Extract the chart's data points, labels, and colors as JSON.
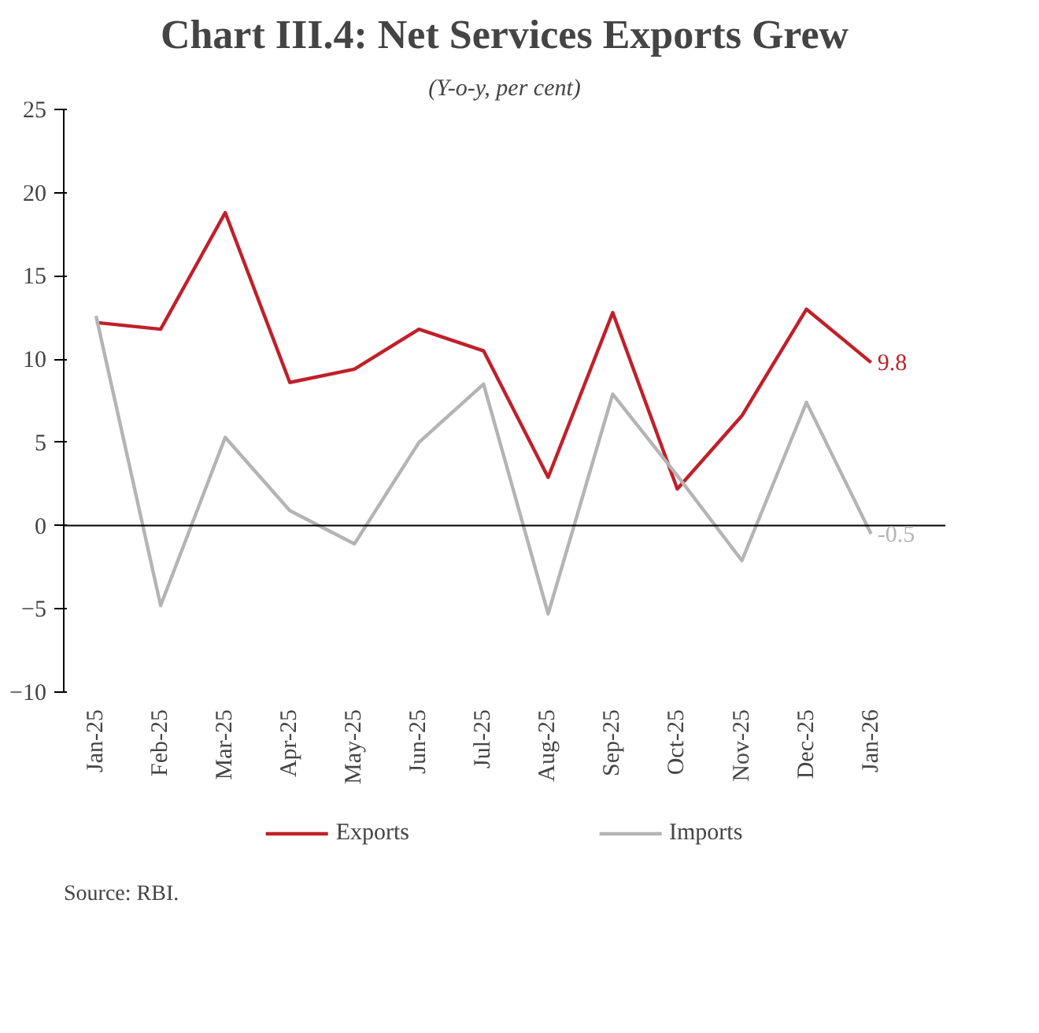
{
  "chart_data": {
    "type": "line",
    "title": "Chart III.4: Net Services Exports Grew",
    "subtitle": "(Y-o-y, per cent)",
    "categories": [
      "Jan-25",
      "Feb-25",
      "Mar-25",
      "Apr-25",
      "May-25",
      "Jun-25",
      "Jul-25",
      "Aug-25",
      "Sep-25",
      "Oct-25",
      "Nov-25",
      "Dec-25",
      "Jan-26"
    ],
    "series": [
      {
        "name": "Exports",
        "color": "#c0202a",
        "values": [
          12.2,
          11.8,
          18.8,
          8.6,
          9.4,
          11.8,
          10.5,
          2.9,
          12.8,
          2.2,
          6.6,
          13.0,
          9.8
        ],
        "value_labels": [
          null,
          null,
          null,
          null,
          null,
          null,
          null,
          null,
          null,
          null,
          null,
          null,
          "9.8"
        ]
      },
      {
        "name": "Imports",
        "color": "#b4b4b4",
        "values": [
          12.6,
          -4.8,
          5.3,
          0.9,
          -1.1,
          5.0,
          8.5,
          -5.3,
          7.9,
          3.0,
          -2.1,
          7.4,
          -0.5
        ],
        "value_labels": [
          null,
          null,
          null,
          null,
          null,
          null,
          null,
          null,
          null,
          null,
          null,
          null,
          "-0.5"
        ]
      }
    ],
    "ylim": [
      -10,
      25
    ],
    "yticks": [
      -10,
      -5,
      0,
      5,
      10,
      15,
      20,
      25
    ],
    "grid": false,
    "legend": "bottom",
    "marker": "none",
    "line_style": "solid",
    "ref_lines": [
      {
        "axis": "y",
        "value": 0,
        "label": null,
        "color": "#000000"
      }
    ],
    "annotations": [
      "Source: RBI."
    ]
  }
}
